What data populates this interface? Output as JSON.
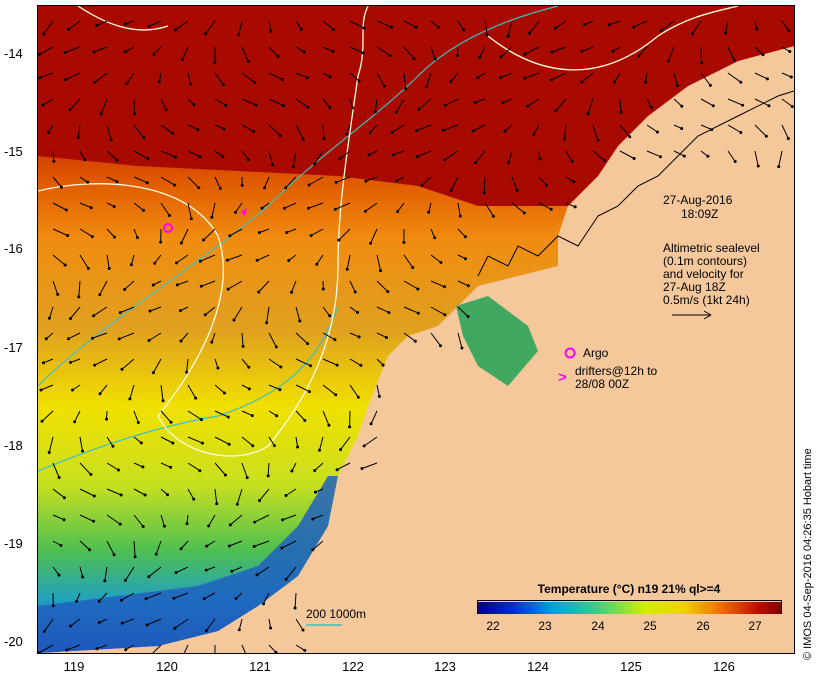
{
  "y_axis": {
    "labels": [
      "-14",
      "-15",
      "-16",
      "-17",
      "-18",
      "-19",
      "-20"
    ]
  },
  "x_axis": {
    "labels": [
      "119",
      "120",
      "121",
      "122",
      "123",
      "124",
      "125",
      "126"
    ]
  },
  "annotation": {
    "datetime_line1": "27-Aug-2016",
    "datetime_line2": "18:09Z",
    "altimetry_line1": "Altimetric sealevel",
    "altimetry_line2": "(0.1m contours)",
    "altimetry_line3": "and velocity for",
    "altimetry_line4": "27-Aug 18Z",
    "scale_label": "0.5m/s (1kt 24h)"
  },
  "legend": {
    "argo_label": "Argo",
    "drifter_line1": "drifters@12h to",
    "drifter_line2": "28/08 00Z",
    "argo_color": "#ff00ff"
  },
  "bathymetry_label": "200  1000m",
  "colorbar": {
    "title": "Temperature (°C) n19 21% ql>=4",
    "labels": [
      "22",
      "23",
      "24",
      "25",
      "26",
      "27"
    ]
  },
  "credit": "© IMOS 04-Sep-2016 04:26:35 Hobart time",
  "colors": {
    "land": "#f5c89c",
    "contour": "#fffde0",
    "bathymetry": "#40c0c0",
    "drifter": "#ff00ff"
  }
}
